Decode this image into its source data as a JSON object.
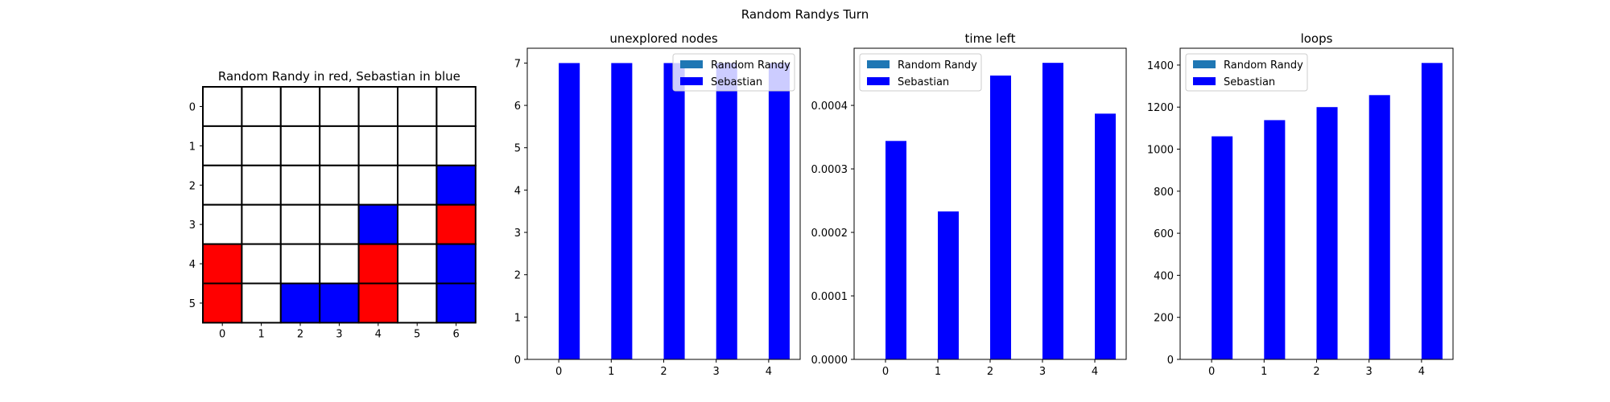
{
  "figure": {
    "suptitle": "Random Randys Turn"
  },
  "colors": {
    "random_randy": "#ff0000",
    "sebastian": "#0000ff",
    "random_randy_bar": "#1f77b4",
    "empty": "#ffffff",
    "grid_line": "#000000"
  },
  "chart_data": [
    {
      "type": "heatmap",
      "title": "Random Randy in red, Sebastian in blue",
      "x_ticks": [
        "0",
        "1",
        "2",
        "3",
        "4",
        "5",
        "6"
      ],
      "y_ticks": [
        "0",
        "1",
        "2",
        "3",
        "4",
        "5"
      ],
      "legend": {
        "0": "empty",
        "1": "Random Randy",
        "2": "Sebastian"
      },
      "cells": [
        [
          0,
          0,
          0,
          0,
          0,
          0,
          0
        ],
        [
          0,
          0,
          0,
          0,
          0,
          0,
          0
        ],
        [
          0,
          0,
          0,
          0,
          0,
          0,
          2
        ],
        [
          0,
          0,
          0,
          0,
          2,
          0,
          1
        ],
        [
          1,
          0,
          0,
          0,
          1,
          0,
          2
        ],
        [
          1,
          0,
          2,
          2,
          1,
          0,
          2
        ]
      ],
      "grid": true
    },
    {
      "type": "bar",
      "title": "unexplored nodes",
      "categories": [
        "0",
        "1",
        "2",
        "3",
        "4"
      ],
      "series": [
        {
          "name": "Random Randy",
          "color": "#1f77b4",
          "values": [
            0,
            0,
            0,
            0,
            0
          ]
        },
        {
          "name": "Sebastian",
          "color": "#0000ff",
          "values": [
            7,
            7,
            7,
            7,
            7
          ]
        }
      ],
      "ylim": [
        0,
        7.35
      ],
      "y_ticks": [
        "0",
        "1",
        "2",
        "3",
        "4",
        "5",
        "6",
        "7"
      ],
      "legend_loc": "top-right",
      "grid": false
    },
    {
      "type": "bar",
      "title": "time left",
      "categories": [
        "0",
        "1",
        "2",
        "3",
        "4"
      ],
      "series": [
        {
          "name": "Random Randy",
          "color": "#1f77b4",
          "values": [
            0,
            0,
            0,
            0,
            0
          ]
        },
        {
          "name": "Sebastian",
          "color": "#0000ff",
          "values": [
            0.000344,
            0.000233,
            0.000447,
            0.000467,
            0.000387
          ]
        }
      ],
      "ylim": [
        0,
        0.00049
      ],
      "y_ticks": [
        "0.0000",
        "0.0001",
        "0.0002",
        "0.0003",
        "0.0004"
      ],
      "legend_loc": "top-left",
      "grid": false
    },
    {
      "type": "bar",
      "title": "loops",
      "categories": [
        "0",
        "1",
        "2",
        "3",
        "4"
      ],
      "series": [
        {
          "name": "Random Randy",
          "color": "#1f77b4",
          "values": [
            0,
            0,
            0,
            0,
            0
          ]
        },
        {
          "name": "Sebastian",
          "color": "#0000ff",
          "values": [
            1061,
            1138,
            1200,
            1257,
            1410
          ]
        }
      ],
      "ylim": [
        0,
        1480
      ],
      "y_ticks": [
        "0",
        "200",
        "400",
        "600",
        "800",
        "1000",
        "1200",
        "1400"
      ],
      "legend_loc": "top-left",
      "grid": false
    }
  ]
}
